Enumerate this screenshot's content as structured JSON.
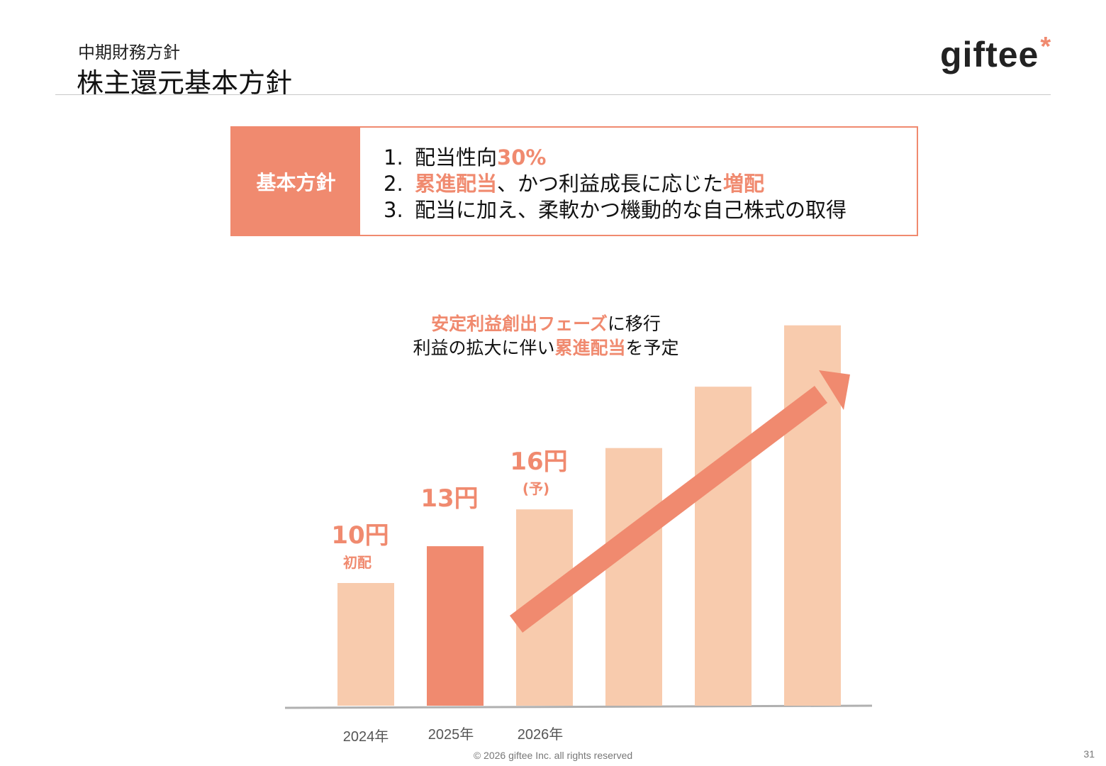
{
  "header": {
    "subtitle": "中期財務方針",
    "title": "株主還元基本方針",
    "logo_text": "giftee",
    "logo_mark": "*"
  },
  "policy": {
    "label": "基本方針",
    "items": [
      {
        "num": "1.",
        "parts": [
          {
            "text": "配当性向",
            "hl": false
          },
          {
            "text": "30%",
            "hl": true
          }
        ]
      },
      {
        "num": "2.",
        "parts": [
          {
            "text": "累進配当",
            "hl": true
          },
          {
            "text": "、かつ利益成長に応じた",
            "hl": false
          },
          {
            "text": "増配",
            "hl": true
          }
        ]
      },
      {
        "num": "3.",
        "parts": [
          {
            "text": "配当に加え、柔軟かつ機動的な自己株式の取得",
            "hl": false
          }
        ]
      }
    ]
  },
  "caption": {
    "line1": [
      {
        "text": "安定利益創出フェーズ",
        "hl": true
      },
      {
        "text": "に移行",
        "hl": false
      }
    ],
    "line2": [
      {
        "text": "利益の拡大に伴い",
        "hl": false
      },
      {
        "text": "累進配当",
        "hl": true
      },
      {
        "text": "を予定"
      }
    ]
  },
  "chart_data": {
    "type": "bar",
    "categories": [
      "2024年",
      "2025年",
      "2026年",
      "",
      "",
      ""
    ],
    "values": [
      10,
      13,
      16,
      21,
      26,
      31
    ],
    "value_labels": [
      "10円",
      "13円",
      "16円",
      "",
      "",
      ""
    ],
    "sub_labels": [
      "初配",
      "",
      "(予)",
      "",
      "",
      ""
    ],
    "highlight_index": 1,
    "trend_arrow": true
  },
  "colors": {
    "accent": "#f08a6f",
    "bar_light": "#f8cbad",
    "bar_highlight": "#f08a6f"
  },
  "footer": {
    "copyright": "© 2026 giftee Inc. all rights reserved",
    "page": "31"
  }
}
